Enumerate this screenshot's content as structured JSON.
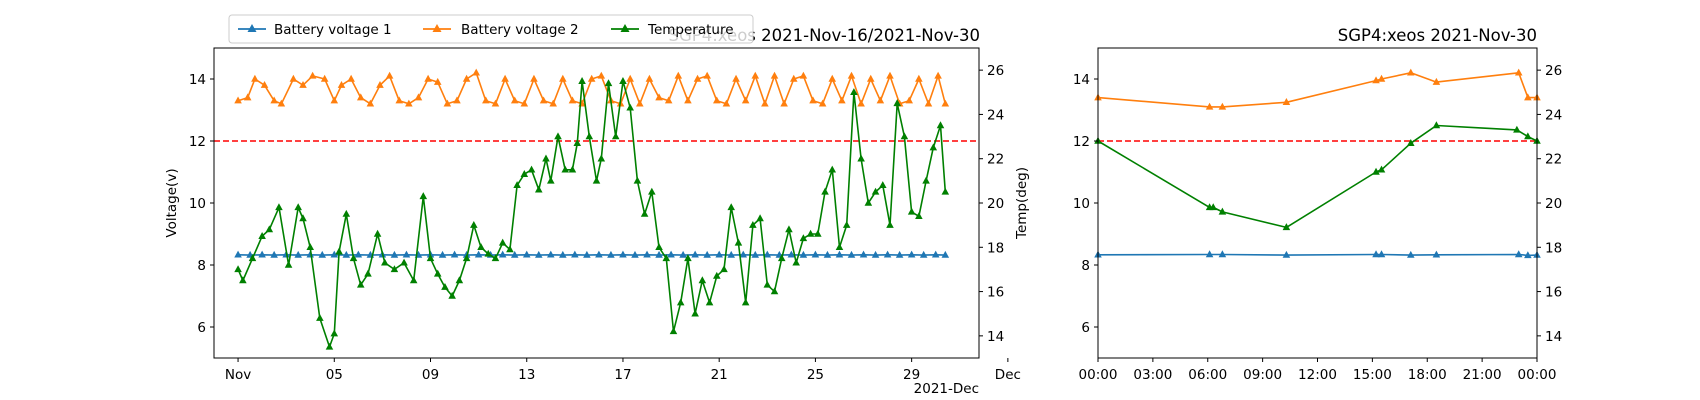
{
  "colors": {
    "v1": "#1f77b4",
    "v2": "#ff7f0e",
    "temp": "#008000",
    "threshold": "#ff0000",
    "axis": "#000000"
  },
  "legend": {
    "items": [
      "Battery voltage 1",
      "Battery voltage 2",
      "Temperature"
    ],
    "placement": "top-left"
  },
  "chart_data": [
    {
      "type": "line",
      "title": "SGP4:xeos 2021-Nov-16/2021-Nov-30",
      "xlabel": "",
      "ylabel": "Voltage(v)",
      "y2label": "Temp(deg)",
      "x_tick_labels": [
        "Nov",
        "05",
        "09",
        "13",
        "17",
        "21",
        "25",
        "29",
        "Dec"
      ],
      "x_offset_label": "2021-Dec",
      "x_tick_days": [
        1,
        5,
        9,
        13,
        17,
        21,
        25,
        29,
        33
      ],
      "xlim_days": [
        0.0,
        31.8
      ],
      "ylim": [
        5.0,
        15.0
      ],
      "y_ticks": [
        6,
        8,
        10,
        12,
        14
      ],
      "y2lim": [
        13.0,
        27.0
      ],
      "y2_ticks": [
        14,
        16,
        18,
        20,
        22,
        24,
        26
      ],
      "threshold": 12,
      "grid": false,
      "series": [
        {
          "name": "Battery voltage 1",
          "axis": "left",
          "x": [
            1.0,
            1.5,
            2.0,
            2.5,
            3.0,
            3.5,
            4.0,
            4.5,
            5.0,
            5.5,
            6.0,
            6.5,
            7.0,
            7.5,
            8.0,
            8.5,
            9.0,
            9.5,
            10.0,
            10.5,
            11.0,
            11.5,
            12.0,
            12.5,
            13.0,
            13.5,
            14.0,
            14.5,
            15.0,
            15.5,
            16.0,
            16.5,
            17.0,
            17.5,
            18.0,
            18.5,
            19.0,
            19.5,
            20.0,
            20.5,
            21.0,
            21.5,
            22.0,
            22.5,
            23.0,
            23.5,
            24.0,
            24.5,
            25.0,
            25.5,
            26.0,
            26.5,
            27.0,
            27.5,
            28.0,
            28.5,
            29.0,
            29.5,
            30.0,
            30.4
          ],
          "y": [
            8.33,
            8.32,
            8.33,
            8.32,
            8.33,
            8.32,
            8.33,
            8.32,
            8.33,
            8.32,
            8.33,
            8.32,
            8.33,
            8.32,
            8.33,
            8.32,
            8.33,
            8.32,
            8.33,
            8.32,
            8.33,
            8.32,
            8.33,
            8.32,
            8.33,
            8.32,
            8.33,
            8.32,
            8.33,
            8.32,
            8.33,
            8.32,
            8.33,
            8.32,
            8.33,
            8.32,
            8.33,
            8.32,
            8.33,
            8.32,
            8.33,
            8.32,
            8.33,
            8.32,
            8.33,
            8.32,
            8.33,
            8.32,
            8.33,
            8.32,
            8.33,
            8.32,
            8.33,
            8.32,
            8.33,
            8.32,
            8.33,
            8.32,
            8.33,
            8.32
          ]
        },
        {
          "name": "Battery voltage 2",
          "axis": "left",
          "x": [
            1.0,
            1.4,
            1.7,
            2.1,
            2.5,
            2.8,
            3.3,
            3.7,
            4.1,
            4.6,
            5.0,
            5.3,
            5.7,
            6.1,
            6.5,
            6.9,
            7.3,
            7.7,
            8.1,
            8.5,
            8.9,
            9.3,
            9.7,
            10.1,
            10.5,
            10.9,
            11.3,
            11.7,
            12.1,
            12.5,
            12.9,
            13.3,
            13.7,
            14.1,
            14.5,
            14.9,
            15.3,
            15.7,
            16.1,
            16.5,
            16.9,
            17.3,
            17.7,
            18.1,
            18.5,
            18.9,
            19.3,
            19.7,
            20.1,
            20.5,
            20.9,
            21.3,
            21.7,
            22.1,
            22.5,
            22.9,
            23.3,
            23.7,
            24.1,
            24.5,
            24.9,
            25.3,
            25.7,
            26.1,
            26.5,
            26.9,
            27.3,
            27.7,
            28.1,
            28.5,
            28.9,
            29.3,
            29.7,
            30.1,
            30.4
          ],
          "y": [
            13.3,
            13.4,
            14.0,
            13.8,
            13.3,
            13.2,
            14.0,
            13.8,
            14.1,
            14.0,
            13.3,
            13.8,
            14.0,
            13.4,
            13.2,
            13.8,
            14.1,
            13.3,
            13.2,
            13.4,
            14.0,
            13.9,
            13.2,
            13.3,
            14.0,
            14.2,
            13.3,
            13.2,
            14.0,
            13.3,
            13.2,
            14.0,
            13.3,
            13.2,
            14.0,
            13.3,
            13.2,
            14.0,
            14.1,
            13.3,
            13.2,
            14.0,
            13.2,
            14.0,
            13.4,
            13.3,
            14.1,
            13.3,
            14.0,
            14.1,
            13.3,
            13.2,
            14.0,
            13.3,
            14.1,
            13.2,
            14.1,
            13.2,
            14.0,
            14.1,
            13.3,
            13.2,
            14.0,
            13.3,
            14.1,
            13.2,
            14.0,
            13.3,
            14.1,
            13.2,
            13.3,
            14.0,
            13.2,
            14.1,
            13.2
          ]
        },
        {
          "name": "Temperature",
          "axis": "right",
          "x": [
            1.0,
            1.2,
            1.6,
            2.0,
            2.3,
            2.7,
            3.1,
            3.5,
            3.7,
            4.0,
            4.4,
            4.8,
            5.0,
            5.2,
            5.5,
            5.8,
            6.1,
            6.4,
            6.8,
            7.1,
            7.5,
            7.9,
            8.3,
            8.7,
            9.0,
            9.3,
            9.6,
            9.9,
            10.2,
            10.5,
            10.8,
            11.1,
            11.4,
            11.7,
            12.0,
            12.3,
            12.6,
            12.9,
            13.2,
            13.5,
            13.8,
            14.0,
            14.3,
            14.6,
            14.9,
            15.1,
            15.3,
            15.6,
            15.9,
            16.1,
            16.4,
            16.7,
            17.0,
            17.3,
            17.6,
            17.9,
            18.2,
            18.5,
            18.8,
            19.1,
            19.4,
            19.7,
            20.0,
            20.3,
            20.6,
            20.9,
            21.2,
            21.5,
            21.8,
            22.1,
            22.4,
            22.7,
            23.0,
            23.3,
            23.6,
            23.9,
            24.2,
            24.5,
            24.8,
            25.1,
            25.4,
            25.7,
            26.0,
            26.3,
            26.6,
            26.9,
            27.2,
            27.5,
            27.8,
            28.1,
            28.4,
            28.7,
            29.0,
            29.3,
            29.6,
            29.9,
            30.2,
            30.4
          ],
          "y": [
            17.0,
            16.5,
            17.5,
            18.5,
            18.8,
            19.8,
            17.2,
            19.8,
            19.3,
            18.0,
            14.8,
            13.5,
            14.1,
            17.8,
            19.5,
            17.5,
            16.3,
            16.8,
            18.6,
            17.3,
            17.0,
            17.3,
            16.5,
            20.3,
            17.5,
            16.8,
            16.2,
            15.8,
            16.5,
            17.5,
            19.0,
            18.0,
            17.7,
            17.5,
            18.2,
            17.9,
            20.8,
            21.3,
            21.5,
            20.6,
            22.0,
            21.0,
            23.0,
            21.5,
            21.5,
            22.7,
            25.5,
            23.0,
            21.0,
            22.0,
            25.4,
            23.0,
            25.5,
            24.3,
            21.0,
            19.5,
            20.5,
            18.0,
            17.5,
            14.2,
            15.5,
            17.5,
            15.0,
            16.5,
            15.5,
            16.7,
            17.0,
            19.8,
            18.2,
            15.5,
            19.0,
            19.3,
            16.3,
            16.0,
            17.5,
            18.8,
            17.3,
            18.4,
            18.6,
            18.6,
            20.5,
            21.5,
            18.0,
            19.0,
            25.0,
            22.0,
            20.0,
            20.5,
            20.8,
            19.0,
            24.5,
            23.0,
            19.6,
            19.4,
            21.0,
            22.5,
            23.5,
            20.5
          ]
        }
      ]
    },
    {
      "type": "line",
      "title": "SGP4:xeos 2021-Nov-30",
      "xlabel": "",
      "ylabel": "",
      "x_tick_labels": [
        "00:00",
        "03:00",
        "06:00",
        "09:00",
        "12:00",
        "15:00",
        "18:00",
        "21:00",
        "00:00"
      ],
      "x_tick_hours": [
        0,
        3,
        6,
        9,
        12,
        15,
        18,
        21,
        24
      ],
      "xlim_hours": [
        0,
        24
      ],
      "ylim": [
        5.0,
        15.0
      ],
      "y_ticks": [
        6,
        8,
        10,
        12,
        14
      ],
      "y2lim": [
        13.0,
        27.0
      ],
      "y2_ticks": [
        14,
        16,
        18,
        20,
        22,
        24,
        26
      ],
      "threshold": 12,
      "grid": false,
      "series": [
        {
          "name": "Battery voltage 1",
          "axis": "left",
          "x": [
            0.0,
            6.1,
            6.8,
            10.3,
            15.2,
            15.5,
            17.1,
            18.5,
            23.0,
            23.5,
            24.0
          ],
          "y": [
            8.33,
            8.34,
            8.34,
            8.32,
            8.34,
            8.34,
            8.32,
            8.33,
            8.34,
            8.31,
            8.32
          ]
        },
        {
          "name": "Battery voltage 2",
          "axis": "left",
          "x": [
            0.0,
            6.1,
            6.8,
            10.3,
            15.2,
            15.5,
            17.1,
            18.5,
            23.0,
            23.5,
            24.0
          ],
          "y": [
            13.4,
            13.1,
            13.1,
            13.25,
            13.95,
            14.0,
            14.2,
            13.9,
            14.2,
            13.4,
            13.4
          ]
        },
        {
          "name": "Temperature",
          "axis": "right",
          "x": [
            0.0,
            6.1,
            6.3,
            6.8,
            10.3,
            15.2,
            15.5,
            17.1,
            18.5,
            22.9,
            23.5,
            24.0
          ],
          "y": [
            22.8,
            19.8,
            19.8,
            19.6,
            18.9,
            21.4,
            21.5,
            22.7,
            23.5,
            23.3,
            23.0,
            22.8
          ]
        }
      ]
    }
  ]
}
